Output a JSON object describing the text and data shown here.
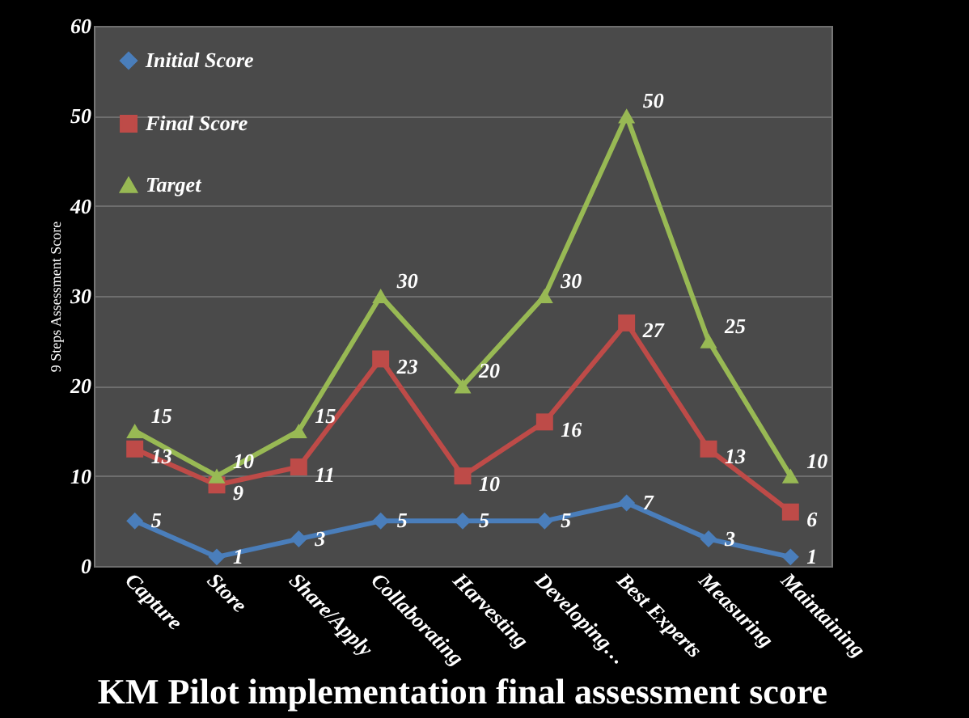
{
  "chart_data": {
    "type": "line",
    "title": "KM Pilot implementation final assessment score",
    "ylabel": "9 Steps Assessment Score",
    "categories": [
      "Capture",
      "Store",
      "Share/Apply",
      "Collaborating",
      "Harvesting",
      "Developing…",
      "Best Experts",
      "Measuring",
      "Maintaining"
    ],
    "series": [
      {
        "name": "Initial Score",
        "color": "#4a7ebb",
        "marker": "diamond",
        "values": [
          5,
          1,
          3,
          5,
          5,
          5,
          7,
          3,
          1
        ]
      },
      {
        "name": "Final Score",
        "color": "#be4b48",
        "marker": "square",
        "values": [
          13,
          9,
          11,
          23,
          10,
          16,
          27,
          13,
          6
        ]
      },
      {
        "name": "Target",
        "color": "#98b954",
        "marker": "triangle",
        "values": [
          15,
          10,
          15,
          30,
          20,
          30,
          50,
          25,
          10
        ]
      }
    ],
    "ylim": [
      0,
      60
    ],
    "yticks": [
      0,
      10,
      20,
      30,
      40,
      50,
      60
    ],
    "grid": "y",
    "legend": "top left",
    "data_labels": true
  }
}
